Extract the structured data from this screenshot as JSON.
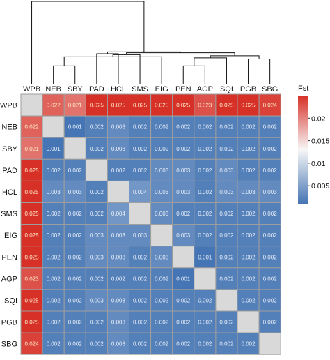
{
  "chart_data": {
    "type": "heatmap",
    "populations": [
      "WPB",
      "NEB",
      "SBY",
      "PAD",
      "HCL",
      "SMS",
      "EIG",
      "PEN",
      "AGP",
      "SQI",
      "PGB",
      "SBG"
    ],
    "values": [
      [
        null,
        "0.022",
        "0.021",
        "0.025",
        "0.025",
        "0.025",
        "0.025",
        "0.025",
        "0.023",
        "0.025",
        "0.025",
        "0.024"
      ],
      [
        "0.022",
        null,
        "0.001",
        "0.002",
        "0.003",
        "0.002",
        "0.002",
        "0.002",
        "0.002",
        "0.002",
        "0.002",
        "0.002"
      ],
      [
        "0.021",
        "0.001",
        null,
        "0.002",
        "0.003",
        "0.002",
        "0.002",
        "0.002",
        "0.002",
        "0.002",
        "0.002",
        "0.002"
      ],
      [
        "0.025",
        "0.002",
        "0.002",
        null,
        "0.002",
        "0.002",
        "0.003",
        "0.003",
        "0.002",
        "0.003",
        "0.002",
        "0.002"
      ],
      [
        "0.025",
        "0.003",
        "0.003",
        "0.002",
        null,
        "0.004",
        "0.003",
        "0.003",
        "0.002",
        "0.003",
        "0.003",
        "0.003"
      ],
      [
        "0.025",
        "0.002",
        "0.002",
        "0.002",
        "0.004",
        null,
        "0.003",
        "0.002",
        "0.002",
        "0.002",
        "0.002",
        "0.002"
      ],
      [
        "0.025",
        "0.002",
        "0.002",
        "0.003",
        "0.003",
        "0.003",
        null,
        "0.003",
        "0.002",
        "0.002",
        "0.002",
        "0.002"
      ],
      [
        "0.025",
        "0.002",
        "0.002",
        "0.003",
        "0.003",
        "0.002",
        "0.003",
        null,
        "0.001",
        "0.002",
        "0.002",
        "0.002"
      ],
      [
        "0.023",
        "0.002",
        "0.002",
        "0.002",
        "0.002",
        "0.002",
        "0.002",
        "0.001",
        null,
        "0.002",
        "0.002",
        "0.002"
      ],
      [
        "0.025",
        "0.002",
        "0.002",
        "0.003",
        "0.003",
        "0.002",
        "0.002",
        "0.002",
        "0.002",
        null,
        "0.002",
        "0.002"
      ],
      [
        "0.025",
        "0.002",
        "0.002",
        "0.002",
        "0.003",
        "0.002",
        "0.002",
        "0.002",
        "0.002",
        "0.002",
        null,
        "0.002"
      ],
      [
        "0.024",
        "0.002",
        "0.002",
        "0.002",
        "0.003",
        "0.002",
        "0.002",
        "0.002",
        "0.002",
        "0.002",
        "0.002",
        null
      ]
    ],
    "legend": {
      "title": "Fst",
      "ticks": [
        {
          "value": 0.005,
          "label": "0.005"
        },
        {
          "value": 0.01,
          "label": "0.01"
        },
        {
          "value": 0.015,
          "label": "0.015"
        },
        {
          "value": 0.02,
          "label": "0.02"
        }
      ],
      "range": [
        0.001,
        0.025
      ]
    },
    "colorscale": [
      "#4575b4",
      "#f7f7f7",
      "#d73027"
    ],
    "diagonal_color": "#d9d9d9",
    "grid_color": "#9e9e9e",
    "dendrogram": {
      "merges": [
        {
          "a": 1,
          "b": 2,
          "h": 0.001
        },
        {
          "a": 7,
          "b": 8,
          "h": 0.001
        },
        {
          "a": 10,
          "b": 11,
          "h": 0.002
        },
        {
          "a": 9,
          "b": 101,
          "h": 0.0022
        },
        {
          "a": 6,
          "b": 100,
          "h": 0.0024
        },
        {
          "a": 102,
          "b": 103,
          "h": 0.0026
        },
        {
          "a": 5,
          "b": 104,
          "h": 0.0028
        },
        {
          "a": 3,
          "b": 4,
          "h": 0.003
        },
        {
          "a": 105,
          "b": 106,
          "h": 0.0032
        },
        {
          "a": 107,
          "b": 108,
          "h": 0.0034
        },
        {
          "a": 0,
          "b": 109,
          "h": 0.024
        }
      ]
    }
  }
}
